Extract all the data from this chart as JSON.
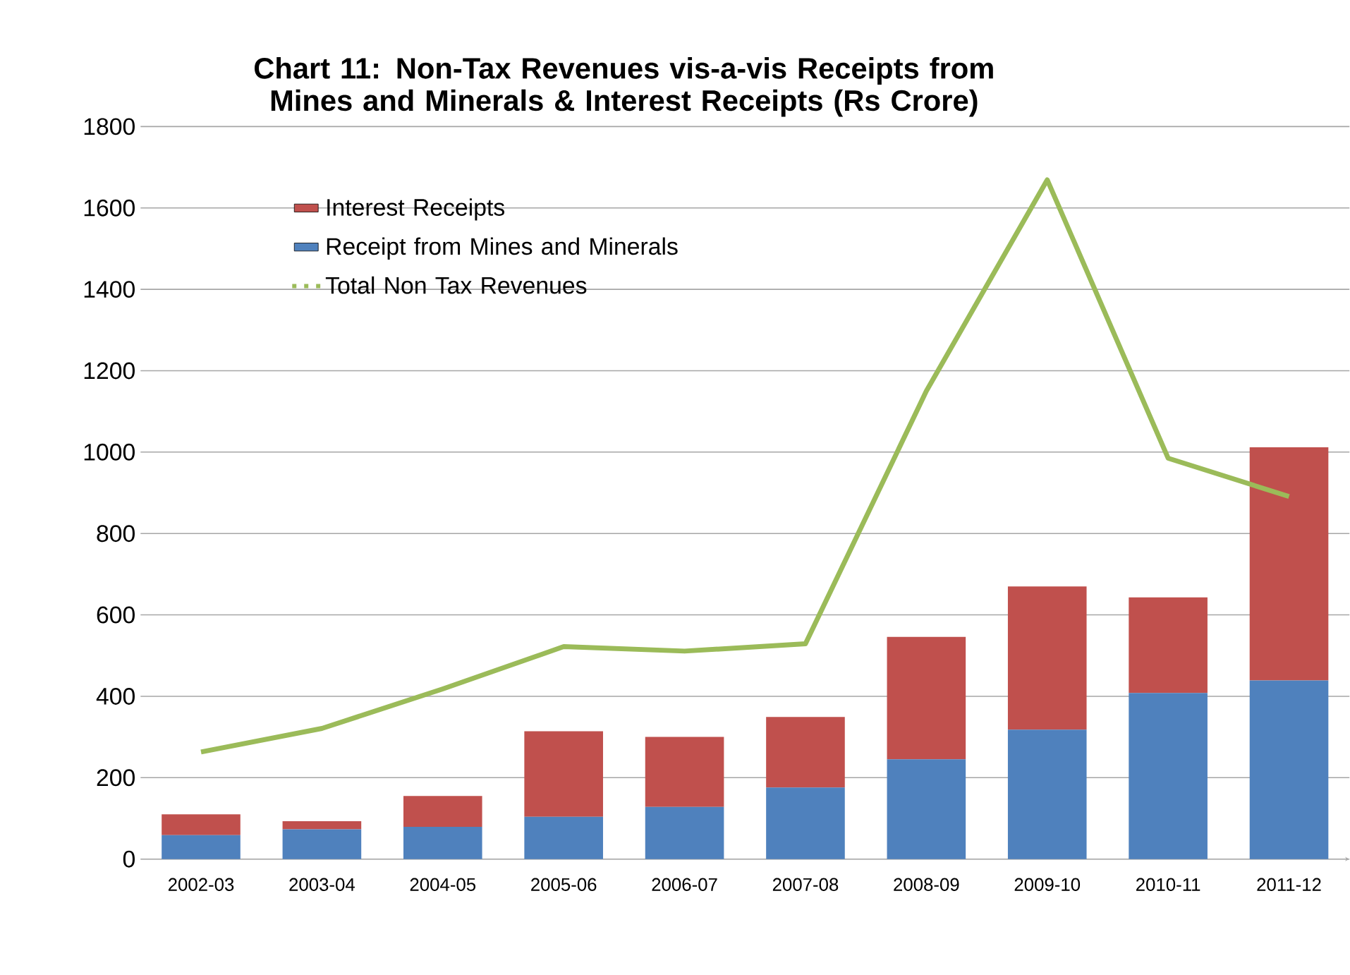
{
  "chart_data": {
    "type": "bar",
    "stacked": true,
    "title": "Chart 11: Non-Tax Revenues vis-a-vis Receipts from Mines and Minerals & Interest Receipts (Rs Crore)",
    "categories": [
      "2002-03",
      "2003-04",
      "2004-05",
      "2005-06",
      "2006-07",
      "2007-08",
      "2008-09",
      "2009-10",
      "2010-11",
      "2011-12"
    ],
    "series": [
      {
        "name": "Receipt from Mines and Minerals",
        "color": "#4f81bd",
        "values": [
          59,
          73,
          79,
          104,
          128,
          176,
          245,
          318,
          408,
          439
        ]
      },
      {
        "name": "Interest Receipts",
        "color": "#c0504d",
        "values": [
          51,
          20,
          76,
          210,
          172,
          173,
          301,
          352,
          235,
          573
        ]
      },
      {
        "name": "Total  Non Tax Revenues",
        "type": "line",
        "color": "#9bbb59",
        "values": [
          263,
          321,
          418,
          522,
          511,
          529,
          1150,
          1669,
          985,
          891
        ]
      }
    ],
    "ylim": [
      0,
      1800
    ],
    "yticks": [
      0,
      200,
      400,
      600,
      800,
      1000,
      1200,
      1400,
      1600,
      1800
    ],
    "grid": "y",
    "legend": "top left",
    "marker": "none",
    "line_style": "solid"
  }
}
